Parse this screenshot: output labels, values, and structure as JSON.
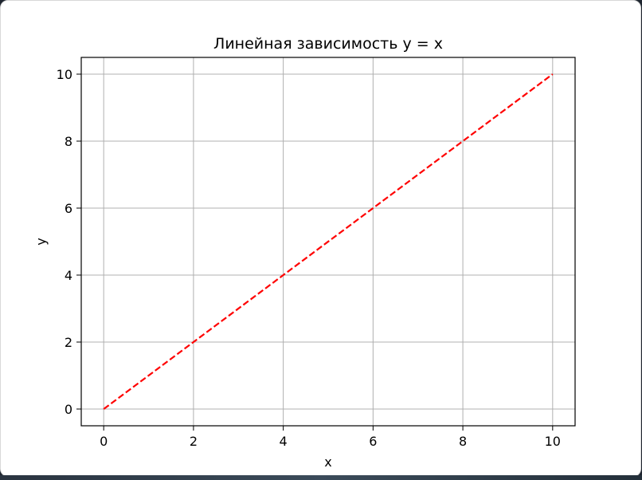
{
  "chart_data": {
    "type": "line",
    "title": "Линейная зависимость y = x",
    "xlabel": "x",
    "ylabel": "y",
    "xlim": [
      -0.5,
      10.5
    ],
    "ylim": [
      -0.5,
      10.5
    ],
    "grid": true,
    "x_ticks": [
      0,
      2,
      4,
      6,
      8,
      10
    ],
    "y_ticks": [
      0,
      2,
      4,
      6,
      8,
      10
    ],
    "series": [
      {
        "x": [
          0,
          10
        ],
        "y": [
          0,
          10
        ],
        "color": "#ff0000",
        "line_style": "dashed"
      }
    ]
  }
}
